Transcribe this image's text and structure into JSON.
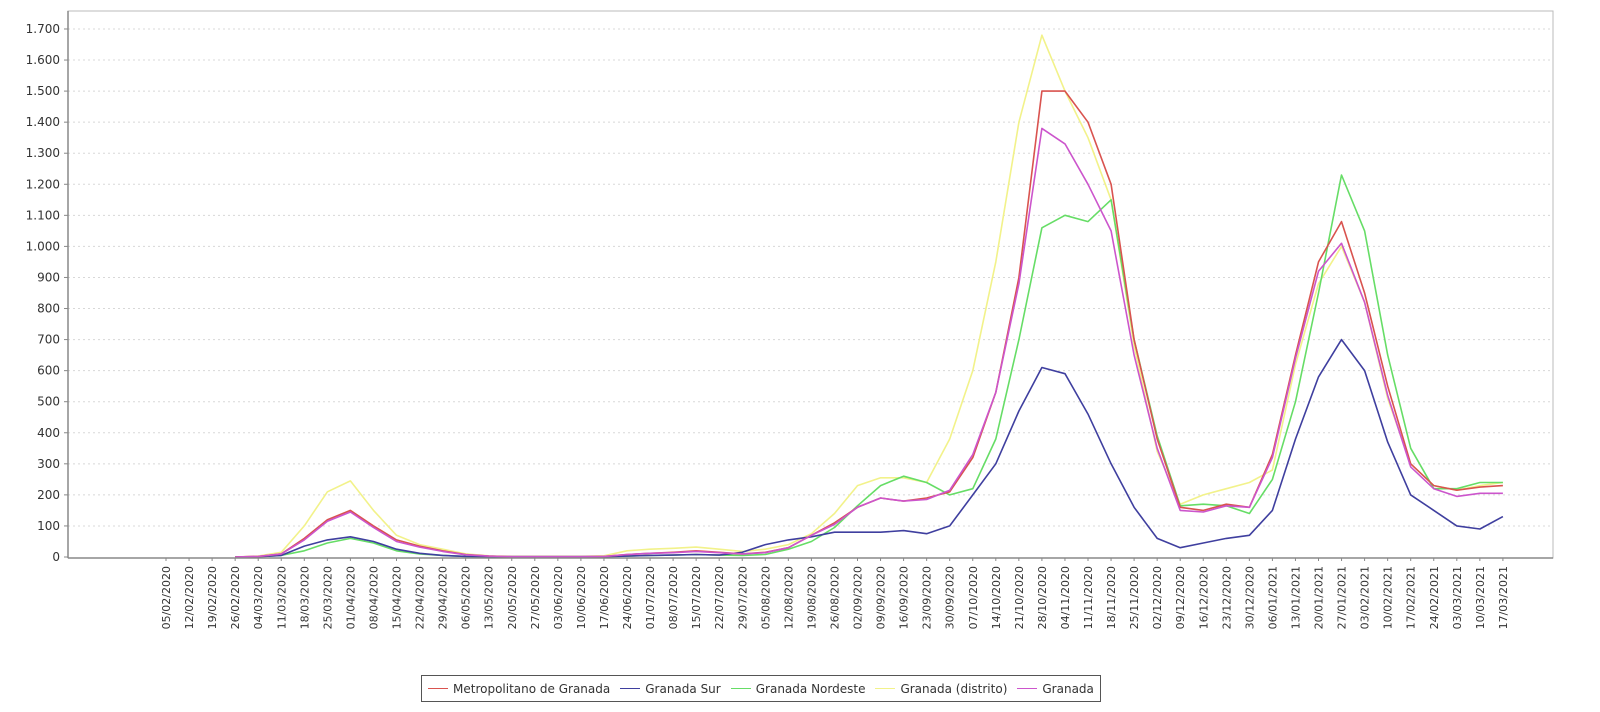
{
  "chart_data": {
    "type": "line",
    "title": "",
    "xlabel": "",
    "ylabel": "",
    "ylim": [
      0,
      1750
    ],
    "grid": true,
    "legend_position": "bottom",
    "y_ticks": [
      0,
      100,
      200,
      300,
      400,
      500,
      600,
      700,
      800,
      900,
      1000,
      1100,
      1200,
      1300,
      1400,
      1500,
      1600,
      1700
    ],
    "y_tick_labels": [
      "0",
      "100",
      "200",
      "300",
      "400",
      "500",
      "600",
      "700",
      "800",
      "900",
      "1.000",
      "1.100",
      "1.200",
      "1.300",
      "1.400",
      "1.500",
      "1.600",
      "1.700"
    ],
    "categories": [
      "05/02/2020",
      "12/02/2020",
      "19/02/2020",
      "26/02/2020",
      "04/03/2020",
      "11/03/2020",
      "18/03/2020",
      "25/03/2020",
      "01/04/2020",
      "08/04/2020",
      "15/04/2020",
      "22/04/2020",
      "29/04/2020",
      "06/05/2020",
      "13/05/2020",
      "20/05/2020",
      "27/05/2020",
      "03/06/2020",
      "10/06/2020",
      "17/06/2020",
      "24/06/2020",
      "01/07/2020",
      "08/07/2020",
      "15/07/2020",
      "22/07/2020",
      "29/07/2020",
      "05/08/2020",
      "12/08/2020",
      "19/08/2020",
      "26/08/2020",
      "02/09/2020",
      "09/09/2020",
      "16/09/2020",
      "23/09/2020",
      "30/09/2020",
      "07/10/2020",
      "14/10/2020",
      "21/10/2020",
      "28/10/2020",
      "04/11/2020",
      "11/11/2020",
      "18/11/2020",
      "25/11/2020",
      "02/12/2020",
      "09/12/2020",
      "16/12/2020",
      "23/12/2020",
      "30/12/2020",
      "06/01/2021",
      "13/01/2021",
      "20/01/2021",
      "27/01/2021",
      "03/02/2021",
      "10/02/2021",
      "17/02/2021",
      "24/02/2021",
      "03/03/2021",
      "10/03/2021",
      "17/03/2021"
    ],
    "series": [
      {
        "name": "Metropolitano de Granada",
        "color": "#d9534f",
        "values": [
          null,
          null,
          null,
          0,
          2,
          10,
          60,
          120,
          150,
          100,
          55,
          35,
          20,
          8,
          3,
          1,
          1,
          1,
          1,
          2,
          8,
          12,
          15,
          20,
          15,
          10,
          15,
          30,
          70,
          110,
          160,
          190,
          180,
          190,
          210,
          320,
          530,
          900,
          1500,
          1500,
          1400,
          1200,
          700,
          380,
          160,
          150,
          170,
          160,
          330,
          650,
          950,
          1080,
          850,
          550,
          300,
          230,
          215,
          225,
          230
        ]
      },
      {
        "name": "Granada Sur",
        "color": "#3f3f9f",
        "values": [
          null,
          null,
          null,
          0,
          1,
          5,
          35,
          55,
          65,
          50,
          25,
          12,
          5,
          2,
          1,
          1,
          1,
          1,
          1,
          1,
          3,
          5,
          6,
          8,
          6,
          15,
          40,
          55,
          65,
          80,
          80,
          80,
          85,
          75,
          100,
          200,
          300,
          470,
          610,
          590,
          460,
          300,
          160,
          60,
          30,
          45,
          60,
          70,
          150,
          380,
          580,
          700,
          600,
          370,
          200,
          150,
          100,
          90,
          130
        ]
      },
      {
        "name": "Granada Nordeste",
        "color": "#66dd66",
        "values": [
          null,
          null,
          null,
          0,
          1,
          5,
          20,
          45,
          60,
          45,
          20,
          10,
          5,
          2,
          1,
          1,
          1,
          1,
          1,
          1,
          3,
          5,
          6,
          8,
          6,
          5,
          8,
          25,
          50,
          95,
          165,
          230,
          260,
          240,
          200,
          220,
          380,
          700,
          1060,
          1100,
          1080,
          1150,
          700,
          390,
          165,
          170,
          165,
          140,
          250,
          500,
          850,
          1230,
          1050,
          650,
          350,
          220,
          220,
          240,
          240
        ]
      },
      {
        "name": "Granada (distrito)",
        "color": "#f2f28a",
        "values": [
          null,
          null,
          null,
          0,
          3,
          15,
          100,
          210,
          245,
          150,
          70,
          40,
          25,
          10,
          4,
          2,
          2,
          2,
          2,
          4,
          20,
          25,
          28,
          32,
          25,
          18,
          25,
          40,
          75,
          140,
          230,
          255,
          255,
          240,
          380,
          600,
          950,
          1400,
          1680,
          1500,
          1350,
          1150,
          680,
          340,
          170,
          200,
          220,
          240,
          280,
          620,
          880,
          1000,
          820,
          510,
          300,
          230,
          215,
          230,
          240
        ]
      },
      {
        "name": "Granada",
        "color": "#cc55cc",
        "values": [
          null,
          null,
          null,
          0,
          2,
          10,
          55,
          115,
          145,
          95,
          50,
          32,
          18,
          7,
          3,
          1,
          1,
          1,
          1,
          2,
          8,
          12,
          14,
          18,
          14,
          10,
          14,
          30,
          70,
          105,
          160,
          190,
          180,
          185,
          215,
          330,
          530,
          880,
          1380,
          1330,
          1200,
          1050,
          650,
          350,
          150,
          145,
          165,
          160,
          320,
          640,
          920,
          1010,
          820,
          520,
          290,
          220,
          195,
          205,
          205
        ]
      }
    ]
  },
  "legend": {
    "items": [
      {
        "label": "Metropolitano de Granada",
        "color": "#d9534f"
      },
      {
        "label": "Granada Sur",
        "color": "#3f3f9f"
      },
      {
        "label": "Granada Nordeste",
        "color": "#66dd66"
      },
      {
        "label": "Granada (distrito)",
        "color": "#f2f28a"
      },
      {
        "label": "Granada",
        "color": "#cc55cc"
      }
    ]
  }
}
